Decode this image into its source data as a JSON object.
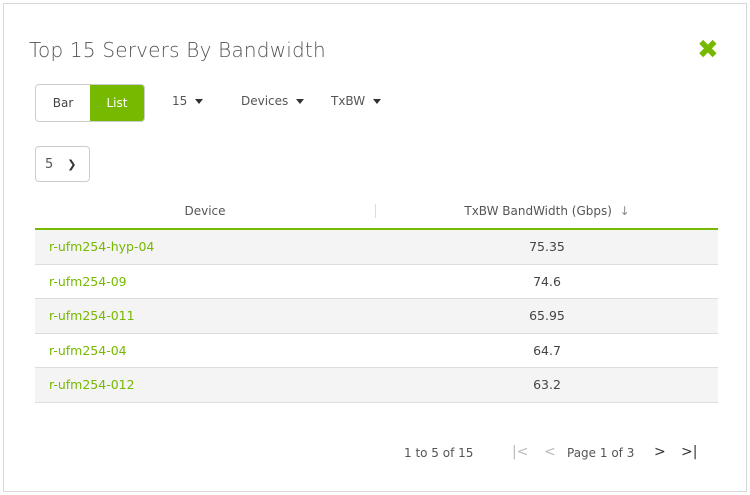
{
  "title": "Top 15 Servers By Bandwidth",
  "view_toggle": {
    "bar": "Bar",
    "list": "List",
    "selected": "List"
  },
  "dropdowns": {
    "count": "15",
    "type": "Devices",
    "metric": "TxBW"
  },
  "page_size": "5",
  "table": {
    "columns": [
      "Device",
      "TxBW BandWidth (Gbps)"
    ],
    "sort_icon": "↓",
    "rows": [
      {
        "device": "r-ufm254-hyp-04",
        "value": "75.35"
      },
      {
        "device": "r-ufm254-09",
        "value": "74.6"
      },
      {
        "device": "r-ufm254-011",
        "value": "65.95"
      },
      {
        "device": "r-ufm254-04",
        "value": "64.7"
      },
      {
        "device": "r-ufm254-012",
        "value": "63.2"
      }
    ]
  },
  "pagination": {
    "range": "1 to 5 of 15",
    "page": "Page 1 of 3",
    "first": "|<",
    "prev": "<",
    "next": ">",
    "last": ">|"
  },
  "colors": {
    "accent": "#76b900"
  }
}
